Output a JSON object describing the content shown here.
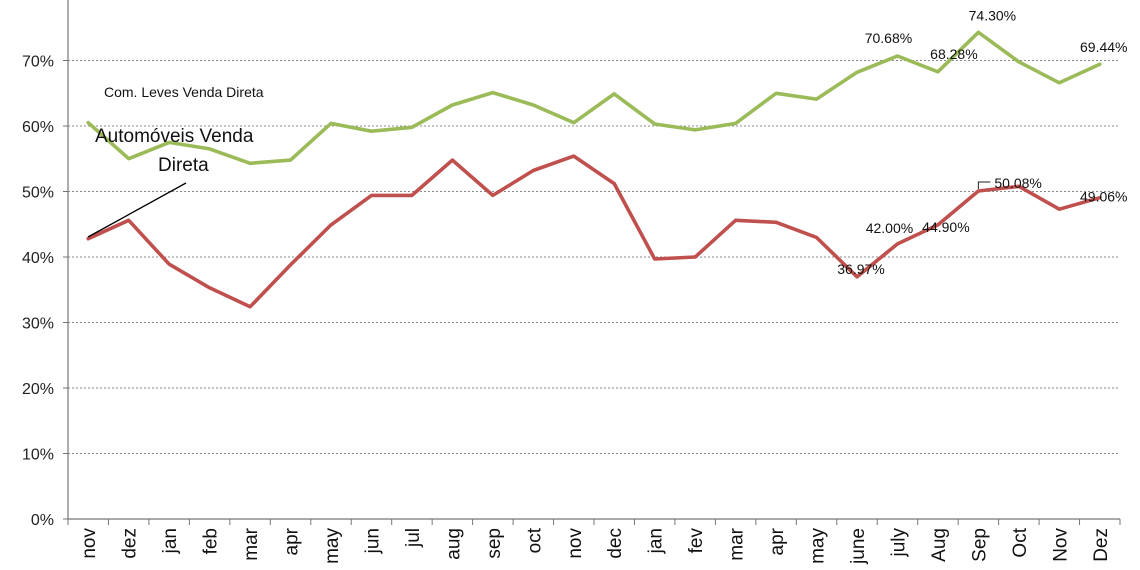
{
  "chart_data": {
    "type": "line",
    "categories": [
      "nov",
      "dez",
      "jan",
      "feb",
      "mar",
      "apr",
      "may",
      "jun",
      "jul",
      "aug",
      "sep",
      "oct",
      "nov",
      "dec",
      "jan",
      "fev",
      "mar",
      "apr",
      "may",
      "june",
      "july",
      "Aug",
      "Sep",
      "Oct",
      "Nov",
      "Dez"
    ],
    "ylim": [
      0,
      0.8
    ],
    "yticks": [
      {
        "value": 0,
        "label": "0%"
      },
      {
        "value": 0.1,
        "label": "10%"
      },
      {
        "value": 0.2,
        "label": "20%"
      },
      {
        "value": 0.3,
        "label": "30%"
      },
      {
        "value": 0.4,
        "label": "40%"
      },
      {
        "value": 0.5,
        "label": "50%"
      },
      {
        "value": 0.6,
        "label": "60%"
      },
      {
        "value": 0.7,
        "label": "70%"
      }
    ],
    "grid": true,
    "colors": {
      "green": "#9bbb59",
      "red": "#c0504d",
      "grid": "#8a8a8a",
      "axis": "#777777"
    },
    "series": [
      {
        "name": "Com. Leves Venda Direta",
        "color": "#9bbb59",
        "values": [
          0.605,
          0.55,
          0.575,
          0.565,
          0.543,
          0.548,
          0.604,
          0.592,
          0.598,
          0.632,
          0.651,
          0.632,
          0.605,
          0.649,
          0.603,
          0.594,
          0.604,
          0.65,
          0.641,
          0.682,
          0.7068,
          0.6828,
          0.743,
          0.698,
          0.666,
          0.6944
        ]
      },
      {
        "name": "Automóveis Venda Direta",
        "color": "#c0504d",
        "values": [
          0.428,
          0.456,
          0.389,
          0.353,
          0.324,
          0.388,
          0.449,
          0.494,
          0.494,
          0.548,
          0.494,
          0.532,
          0.554,
          0.512,
          0.397,
          0.4,
          0.456,
          0.453,
          0.43,
          0.3697,
          0.42,
          0.449,
          0.5008,
          0.508,
          0.473,
          0.4906
        ]
      }
    ],
    "annotations": [
      {
        "text": "74.30%",
        "index": 22,
        "value": 0.743
      },
      {
        "text": "70.68%",
        "index": 20,
        "value": 0.7068
      },
      {
        "text": "68.28%",
        "index": 21,
        "value": 0.6828
      },
      {
        "text": "69.44%",
        "index": 25,
        "value": 0.6944
      },
      {
        "text": "50.08%",
        "index": 22,
        "value": 0.5008
      },
      {
        "text": "42.00%",
        "index": 20,
        "value": 0.42
      },
      {
        "text": "44.90%",
        "index": 21,
        "value": 0.449
      },
      {
        "text": "36.97%",
        "index": 19,
        "value": 0.3697
      },
      {
        "text": "49.06%",
        "index": 25,
        "value": 0.4906
      }
    ],
    "series_labels": {
      "green": "Com. Leves Venda Direta",
      "red_line1": "Automóveis Venda",
      "red_line2": "Direta"
    }
  }
}
